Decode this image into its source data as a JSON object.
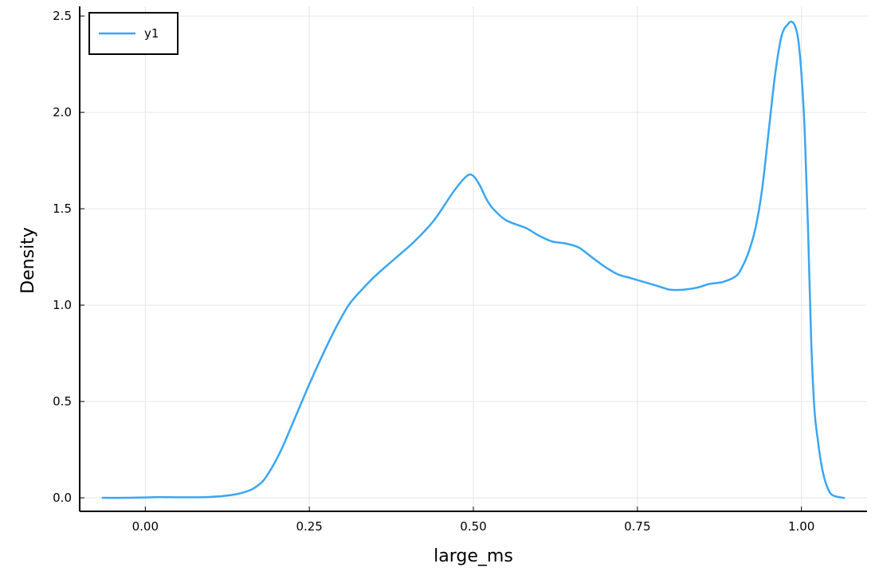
{
  "chart_data": {
    "type": "line",
    "title": "",
    "xlabel": "large_ms",
    "ylabel": "Density",
    "xlim": [
      -0.1,
      1.1
    ],
    "ylim": [
      -0.07,
      2.55
    ],
    "xticks": [
      0.0,
      0.25,
      0.5,
      0.75,
      1.0
    ],
    "xtick_labels": [
      "0.00",
      "0.25",
      "0.50",
      "0.75",
      "1.00"
    ],
    "yticks": [
      0.0,
      0.5,
      1.0,
      1.5,
      2.0,
      2.5
    ],
    "ytick_labels": [
      "0.0",
      "0.5",
      "1.0",
      "1.5",
      "2.0",
      "2.5"
    ],
    "grid": true,
    "legend_position": "top-left",
    "series": [
      {
        "name": "y1",
        "color": "#3aa6f2",
        "x": [
          -0.065,
          -0.03,
          0.0,
          0.02,
          0.05,
          0.08,
          0.1,
          0.12,
          0.14,
          0.16,
          0.17,
          0.18,
          0.19,
          0.2,
          0.21,
          0.22,
          0.23,
          0.24,
          0.25,
          0.27,
          0.29,
          0.31,
          0.33,
          0.35,
          0.38,
          0.41,
          0.44,
          0.47,
          0.49,
          0.5,
          0.51,
          0.52,
          0.53,
          0.55,
          0.58,
          0.6,
          0.62,
          0.64,
          0.66,
          0.68,
          0.7,
          0.72,
          0.74,
          0.76,
          0.78,
          0.8,
          0.82,
          0.84,
          0.86,
          0.88,
          0.9,
          0.91,
          0.92,
          0.93,
          0.94,
          0.95,
          0.96,
          0.97,
          0.98,
          0.985,
          0.99,
          0.995,
          1.0,
          1.005,
          1.01,
          1.015,
          1.02,
          1.025,
          1.03,
          1.035,
          1.04,
          1.045,
          1.05,
          1.06,
          1.065
        ],
        "y": [
          0.0,
          0.0,
          0.002,
          0.004,
          0.003,
          0.003,
          0.005,
          0.01,
          0.02,
          0.04,
          0.06,
          0.09,
          0.14,
          0.2,
          0.27,
          0.35,
          0.43,
          0.51,
          0.59,
          0.74,
          0.88,
          1.0,
          1.08,
          1.15,
          1.24,
          1.33,
          1.44,
          1.59,
          1.67,
          1.67,
          1.62,
          1.55,
          1.5,
          1.44,
          1.4,
          1.36,
          1.33,
          1.32,
          1.3,
          1.25,
          1.2,
          1.16,
          1.14,
          1.12,
          1.1,
          1.08,
          1.08,
          1.09,
          1.11,
          1.12,
          1.15,
          1.2,
          1.28,
          1.4,
          1.6,
          1.9,
          2.2,
          2.4,
          2.46,
          2.47,
          2.45,
          2.38,
          2.2,
          1.9,
          1.4,
          0.8,
          0.45,
          0.3,
          0.18,
          0.1,
          0.05,
          0.02,
          0.01,
          0.002,
          0.0
        ]
      }
    ]
  }
}
